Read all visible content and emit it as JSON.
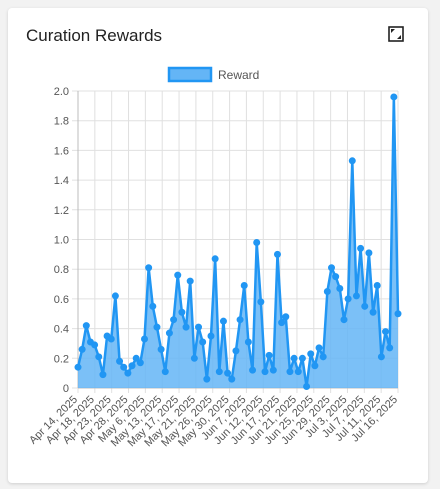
{
  "card": {
    "title": "Curation Rewards",
    "expand_icon": "expand-icon"
  },
  "colors": {
    "line": "#2196f3",
    "fill": "#64b5f6",
    "grid": "#e0e0e0"
  },
  "chart_data": {
    "type": "area",
    "title": "",
    "xlabel": "",
    "ylabel": "",
    "ylim": [
      0,
      2.0
    ],
    "yticks": [
      "0",
      "0.2",
      "0.4",
      "0.6",
      "0.8",
      "1.0",
      "1.2",
      "1.4",
      "1.6",
      "1.8",
      "2.0"
    ],
    "xtick_labels": [
      "Apr 14, 2025",
      "Apr 18, 2025",
      "Apr 23, 2025",
      "Apr 28, 2025",
      "May 6, 2025",
      "May 13, 2025",
      "May 17, 2025",
      "May 21, 2025",
      "May 26, 2025",
      "May 30, 2025",
      "Jun 7, 2025",
      "Jun 12, 2025",
      "Jun 17, 2025",
      "Jun 21, 2025",
      "Jun 25, 2025",
      "Jun 29, 2025",
      "Jul 3, 2025",
      "Jul 7, 2025",
      "Jul 11, 2025",
      "Jul 16, 2025"
    ],
    "legend": {
      "position": "top",
      "entries": [
        "Reward"
      ]
    },
    "series": [
      {
        "name": "Reward",
        "values": [
          0.14,
          0.26,
          0.42,
          0.31,
          0.29,
          0.21,
          0.09,
          0.35,
          0.33,
          0.62,
          0.18,
          0.14,
          0.1,
          0.15,
          0.2,
          0.17,
          0.33,
          0.81,
          0.55,
          0.41,
          0.26,
          0.11,
          0.37,
          0.46,
          0.76,
          0.51,
          0.41,
          0.72,
          0.2,
          0.41,
          0.31,
          0.06,
          0.35,
          0.87,
          0.11,
          0.45,
          0.1,
          0.06,
          0.25,
          0.46,
          0.69,
          0.31,
          0.12,
          0.98,
          0.58,
          0.11,
          0.22,
          0.12,
          0.9,
          0.44,
          0.48,
          0.11,
          0.2,
          0.11,
          0.2,
          0.01,
          0.23,
          0.15,
          0.27,
          0.21,
          0.65,
          0.81,
          0.75,
          0.67,
          0.46,
          0.6,
          1.53,
          0.62,
          0.94,
          0.55,
          0.91,
          0.51,
          0.69,
          0.21,
          0.38,
          0.27,
          1.96,
          0.5
        ]
      }
    ]
  }
}
